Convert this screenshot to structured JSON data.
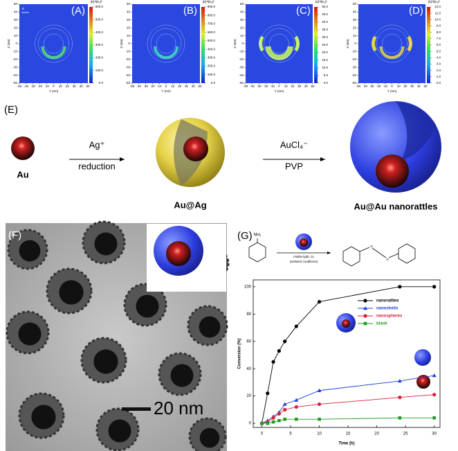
{
  "chart_data": [
    {
      "type": "heatmap",
      "label": "(A)",
      "annotation": "E",
      "xlabel": "Y (nm)",
      "ylabel": "Z (nm)",
      "xlim": [
        -50,
        50
      ],
      "ylim": [
        -50,
        50
      ],
      "xticks": [
        -50,
        -40,
        -30,
        -20,
        -10,
        0,
        10,
        20,
        30,
        40,
        50
      ],
      "yticks": [
        -50,
        -40,
        -30,
        -20,
        -10,
        0,
        10,
        20,
        30,
        40,
        50
      ],
      "colorbar_title": "|E|²/|E₀|²",
      "colorbar_lim": [
        0,
        600
      ],
      "colorbar_ticks": [
        {
          "value": 0,
          "label": "0.0"
        },
        {
          "value": 100,
          "label": "100.0"
        },
        {
          "value": 200,
          "label": "200.0"
        },
        {
          "value": 300,
          "label": "300.0"
        },
        {
          "value": 400,
          "label": "400.0"
        },
        {
          "value": 500,
          "label": "500.0"
        },
        {
          "value": 600,
          "label": "600.0"
        }
      ]
    },
    {
      "type": "heatmap",
      "label": "(B)",
      "xlabel": "Y (nm)",
      "ylabel": "Z (nm)",
      "xlim": [
        -50,
        50
      ],
      "ylim": [
        -50,
        50
      ],
      "xticks": [
        -50,
        -40,
        -30,
        -20,
        -10,
        0,
        10,
        20,
        30,
        40,
        50
      ],
      "yticks": [
        -50,
        -40,
        -30,
        -20,
        -10,
        0,
        10,
        20,
        30,
        40,
        50
      ],
      "colorbar_title": "|E|²/|E₀|²",
      "colorbar_lim": [
        0,
        900
      ],
      "colorbar_ticks": [
        {
          "value": 0,
          "label": "0.0"
        },
        {
          "value": 100,
          "label": "100.0"
        },
        {
          "value": 200,
          "label": "200.0"
        },
        {
          "value": 300,
          "label": "300.0"
        },
        {
          "value": 400,
          "label": "400.0"
        },
        {
          "value": 500,
          "label": "500.0"
        },
        {
          "value": 600,
          "label": "600.0"
        },
        {
          "value": 700,
          "label": "700.0"
        },
        {
          "value": 800,
          "label": "800.0"
        },
        {
          "value": 900,
          "label": "900.0"
        }
      ]
    },
    {
      "type": "heatmap",
      "label": "(C)",
      "xlabel": "Y (nm)",
      "ylabel": "Z (nm)",
      "xlim": [
        -50,
        50
      ],
      "ylim": [
        -50,
        50
      ],
      "xticks": [
        -50,
        -40,
        -30,
        -20,
        -10,
        0,
        10,
        20,
        30,
        40,
        50
      ],
      "yticks": [
        -50,
        -40,
        -30,
        -20,
        -10,
        0,
        10,
        20,
        30,
        40,
        50
      ],
      "colorbar_title": "|E|²/|E₀|²",
      "colorbar_lim": [
        0,
        50
      ],
      "colorbar_ticks": [
        {
          "value": 0,
          "label": "0.0"
        },
        {
          "value": 5,
          "label": "5.0"
        },
        {
          "value": 10,
          "label": "10.0"
        },
        {
          "value": 15,
          "label": "15.0"
        },
        {
          "value": 20,
          "label": "20.0"
        },
        {
          "value": 25,
          "label": "25.0"
        },
        {
          "value": 30,
          "label": "30.0"
        },
        {
          "value": 35,
          "label": "35.0"
        },
        {
          "value": 40,
          "label": "40.0"
        },
        {
          "value": 45,
          "label": "45.0"
        },
        {
          "value": 50,
          "label": "50.0"
        }
      ]
    },
    {
      "type": "heatmap",
      "label": "(D)",
      "xlabel": "Y (nm)",
      "ylabel": "Z (nm)",
      "xlim": [
        -50,
        50
      ],
      "ylim": [
        -50,
        50
      ],
      "xticks": [
        -50,
        -40,
        -30,
        -20,
        -10,
        0,
        10,
        20,
        30,
        40,
        50
      ],
      "yticks": [
        -50,
        -40,
        -30,
        -20,
        -10,
        0,
        10,
        20,
        30,
        40,
        50
      ],
      "colorbar_title": "|E|²/|E₀|²",
      "colorbar_lim": [
        0,
        12
      ],
      "colorbar_ticks": [
        {
          "value": 0,
          "label": "0.0"
        },
        {
          "value": 1,
          "label": "1.0"
        },
        {
          "value": 2,
          "label": "2.0"
        },
        {
          "value": 3,
          "label": "3.0"
        },
        {
          "value": 4,
          "label": "4.0"
        },
        {
          "value": 5,
          "label": "5.0"
        },
        {
          "value": 6,
          "label": "6.0"
        },
        {
          "value": 7,
          "label": "7.0"
        },
        {
          "value": 8,
          "label": "8.0"
        },
        {
          "value": 9,
          "label": "9.0"
        },
        {
          "value": 10,
          "label": "10.0"
        },
        {
          "value": 11,
          "label": "11.0"
        },
        {
          "value": 12,
          "label": "12.0"
        }
      ]
    },
    {
      "type": "line",
      "xlabel": "Time (h)",
      "ylabel": "Conversion (%)",
      "x": [
        0,
        1,
        2,
        3,
        4,
        6,
        10,
        24,
        30
      ],
      "series": [
        {
          "name": "nanorattles",
          "color": "#000000",
          "marker": "circle",
          "values": [
            0,
            22,
            45,
            53,
            60,
            71,
            89,
            100,
            100
          ]
        },
        {
          "name": "nanoshells",
          "color": "#1f3fd8",
          "marker": "triangle",
          "values": [
            0,
            2,
            5,
            8,
            14,
            17,
            24,
            31,
            35
          ]
        },
        {
          "name": "nanospheres",
          "color": "#d8203a",
          "marker": "circle",
          "values": [
            0,
            1,
            4,
            7,
            10,
            12,
            14,
            19,
            21
          ]
        },
        {
          "name": "blank",
          "color": "#1f9e1f",
          "marker": "square",
          "values": [
            0,
            0,
            1,
            2,
            3,
            3,
            3,
            4,
            4
          ]
        }
      ],
      "xlim": [
        -1.5,
        31
      ],
      "ylim": [
        -3,
        105
      ],
      "xticks": [
        0,
        5,
        10,
        15,
        20,
        25,
        30
      ],
      "yticks": [
        0,
        20,
        40,
        60,
        80,
        100
      ],
      "legend": "upper right"
    }
  ],
  "scheme": {
    "label": "(E)",
    "start": "Au",
    "step1_top": "Ag⁺",
    "step1_bottom": "reduction",
    "middle": "Au@Ag",
    "step2_top": "AuCl₄⁻",
    "step2_bottom": "PVP",
    "end": "Au@Au nanorattles"
  },
  "tem": {
    "label": "(F)",
    "scale_bar": "20 nm"
  },
  "reaction": {
    "label": "(G)",
    "reactant_group": "NH₂",
    "condition_top": "Visible light, O₂",
    "condition_bottom": "(ambient conditions)",
    "azo_n1": "N",
    "azo_n2": "N"
  }
}
